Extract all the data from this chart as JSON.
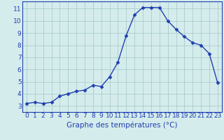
{
  "x": [
    0,
    1,
    2,
    3,
    4,
    5,
    6,
    7,
    8,
    9,
    10,
    11,
    12,
    13,
    14,
    15,
    16,
    17,
    18,
    19,
    20,
    21,
    22,
    23
  ],
  "y": [
    3.2,
    3.3,
    3.2,
    3.3,
    3.8,
    4.0,
    4.2,
    4.3,
    4.7,
    4.6,
    5.4,
    6.6,
    8.8,
    10.5,
    11.1,
    11.1,
    11.1,
    10.0,
    9.3,
    8.7,
    8.2,
    8.0,
    7.3,
    4.9
  ],
  "xlabel": "Graphe des températures (°C)",
  "xticks": [
    0,
    1,
    2,
    3,
    4,
    5,
    6,
    7,
    8,
    9,
    10,
    11,
    12,
    13,
    14,
    15,
    16,
    17,
    18,
    19,
    20,
    21,
    22,
    23
  ],
  "yticks": [
    3,
    4,
    5,
    6,
    7,
    8,
    9,
    10,
    11
  ],
  "ylim": [
    2.5,
    11.6
  ],
  "xlim": [
    -0.5,
    23.5
  ],
  "line_color": "#2040b0",
  "marker": "D",
  "marker_size": 2.5,
  "line_width": 1.0,
  "bg_color": "#d5ecec",
  "grid_color": "#aacccc",
  "label_color": "#2040b0",
  "xlabel_fontsize": 7.5,
  "tick_fontsize": 6.5
}
